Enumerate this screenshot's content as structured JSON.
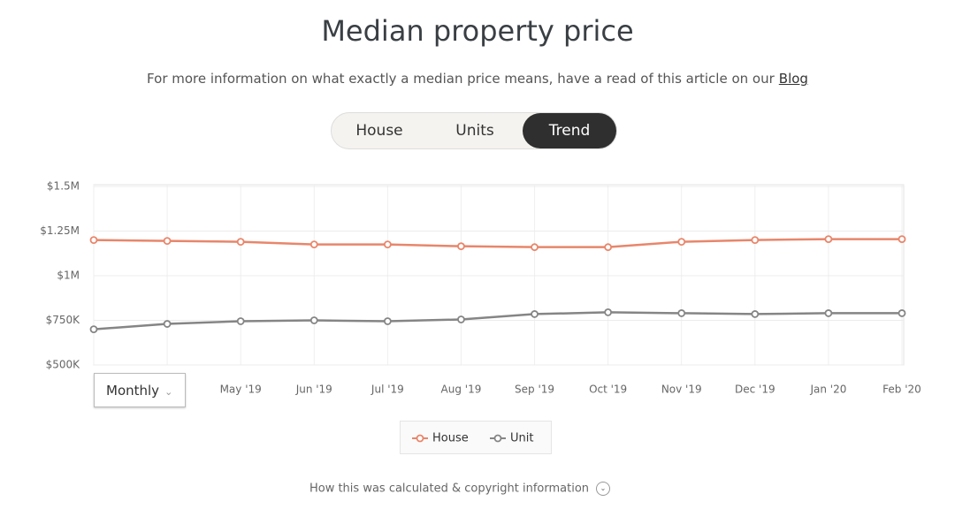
{
  "header": {
    "title": "Median property price",
    "description": "For more information on what exactly a median price means, have a read of this article on our",
    "link": "Blog"
  },
  "tabs": [
    {
      "label": "House"
    },
    {
      "label": "Units"
    },
    {
      "label": "Trend",
      "active": true
    }
  ],
  "dropdown": "Monthly",
  "footer": "How this was calculated & copyright information",
  "chart_data": {
    "type": "line",
    "categories": [
      null,
      null,
      "May '19",
      "Jun '19",
      "Jul '19",
      "Aug '19",
      "Sep '19",
      "Oct '19",
      "Nov '19",
      "Dec '19",
      "Jan '20",
      "Feb '20"
    ],
    "series": [
      {
        "name": "House",
        "color": "#e8866b",
        "values": [
          1200000,
          1195000,
          1190000,
          1175000,
          1175000,
          1165000,
          1160000,
          1160000,
          1190000,
          1200000,
          1205000,
          1205000
        ]
      },
      {
        "name": "Unit",
        "color": "#858585",
        "values": [
          700000,
          730000,
          745000,
          750000,
          745000,
          755000,
          785000,
          795000,
          790000,
          785000,
          790000,
          790000
        ]
      }
    ],
    "ylim": [
      500000,
      1500000
    ],
    "yticks": [
      {
        "value": 500000,
        "label": "$500K"
      },
      {
        "value": 750000,
        "label": "$750K"
      },
      {
        "value": 1000000,
        "label": "$1M"
      },
      {
        "value": 1250000,
        "label": "$1.25M"
      },
      {
        "value": 1500000,
        "label": "$1.5M"
      }
    ],
    "grid": true
  }
}
